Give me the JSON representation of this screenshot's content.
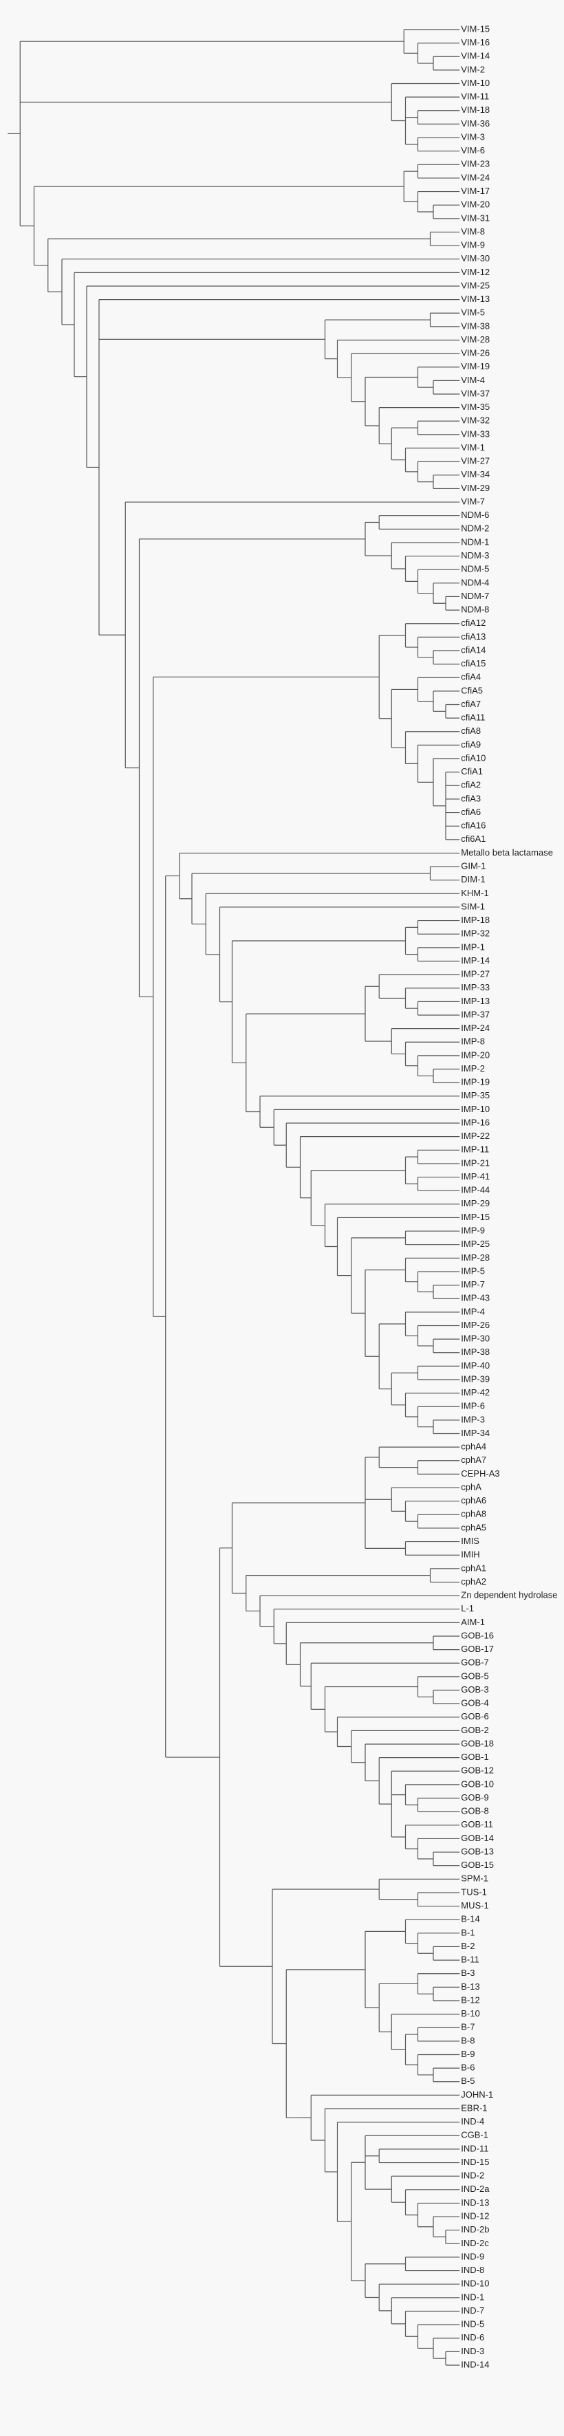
{
  "leaves": [
    "VIM-15",
    "VIM-16",
    "VIM-14",
    "VIM-2",
    "VIM-10",
    "VIM-11",
    "VIM-18",
    "VIM-36",
    "VIM-3",
    "VIM-6",
    "VIM-23",
    "VIM-24",
    "VIM-17",
    "VIM-20",
    "VIM-31",
    "VIM-8",
    "VIM-9",
    "VIM-30",
    "VIM-12",
    "VIM-25",
    "VIM-13",
    "VIM-5",
    "VIM-38",
    "VIM-28",
    "VIM-26",
    "VIM-19",
    "VIM-4",
    "VIM-37",
    "VIM-35",
    "VIM-32",
    "VIM-33",
    "VIM-1",
    "VIM-27",
    "VIM-34",
    "VIM-29",
    "VIM-7",
    "NDM-6",
    "NDM-2",
    "NDM-1",
    "NDM-3",
    "NDM-5",
    "NDM-4",
    "NDM-7",
    "NDM-8",
    "cfiA12",
    "cfiA13",
    "cfiA14",
    "cfiA15",
    "cfiA4",
    "CfiA5",
    "cfiA7",
    "cfiA11",
    "cfiA8",
    "cfiA9",
    "cfiA10",
    "CfiA1",
    "cfiA2",
    "cfiA3",
    "cfiA6",
    "cfiA16",
    "cfi6A1",
    "Metallo beta lactamase",
    "GIM-1",
    "DIM-1",
    "KHM-1",
    "SIM-1",
    "IMP-18",
    "IMP-32",
    "IMP-1",
    "IMP-14",
    "IMP-27",
    "IMP-33",
    "IMP-13",
    "IMP-37",
    "IMP-24",
    "IMP-8",
    "IMP-20",
    "IMP-2",
    "IMP-19",
    "IMP-35",
    "IMP-10",
    "IMP-16",
    "IMP-22",
    "IMP-11",
    "IMP-21",
    "IMP-41",
    "IMP-44",
    "IMP-29",
    "IMP-15",
    "IMP-9",
    "IMP-25",
    "IMP-28",
    "IMP-5",
    "IMP-7",
    "IMP-43",
    "IMP-4",
    "IMP-26",
    "IMP-30",
    "IMP-38",
    "IMP-40",
    "IMP-39",
    "IMP-42",
    "IMP-6",
    "IMP-3",
    "IMP-34",
    "cphA4",
    "cphA7",
    "CEPH-A3",
    "cphA",
    "cphA6",
    "cphA8",
    "cphA5",
    "IMIS",
    "IMIH",
    "cphA1",
    "cphA2",
    "Zn dependent hydrolase",
    "L-1",
    "AIM-1",
    "GOB-16",
    "GOB-17",
    "GOB-7",
    "GOB-5",
    "GOB-3",
    "GOB-4",
    "GOB-6",
    "GOB-2",
    "GOB-18",
    "GOB-1",
    "GOB-12",
    "GOB-10",
    "GOB-9",
    "GOB-8",
    "GOB-11",
    "GOB-14",
    "GOB-13",
    "GOB-15",
    "SPM-1",
    "TUS-1",
    "MUS-1",
    "B-14",
    "B-1",
    "B-2",
    "B-11",
    "B-3",
    "B-13",
    "B-12",
    "B-10",
    "B-7",
    "B-8",
    "B-9",
    "B-6",
    "B-5",
    "JOHN-1",
    "EBR-1",
    "IND-4",
    "CGB-1",
    "IND-11",
    "IND-15",
    "IND-2",
    "IND-2a",
    "IND-13",
    "IND-12",
    "IND-2b",
    "IND-2c",
    "IND-9",
    "IND-8",
    "IND-10",
    "IND-1",
    "IND-7",
    "IND-5",
    "IND-6",
    "IND-3",
    "IND-14"
  ]
}
